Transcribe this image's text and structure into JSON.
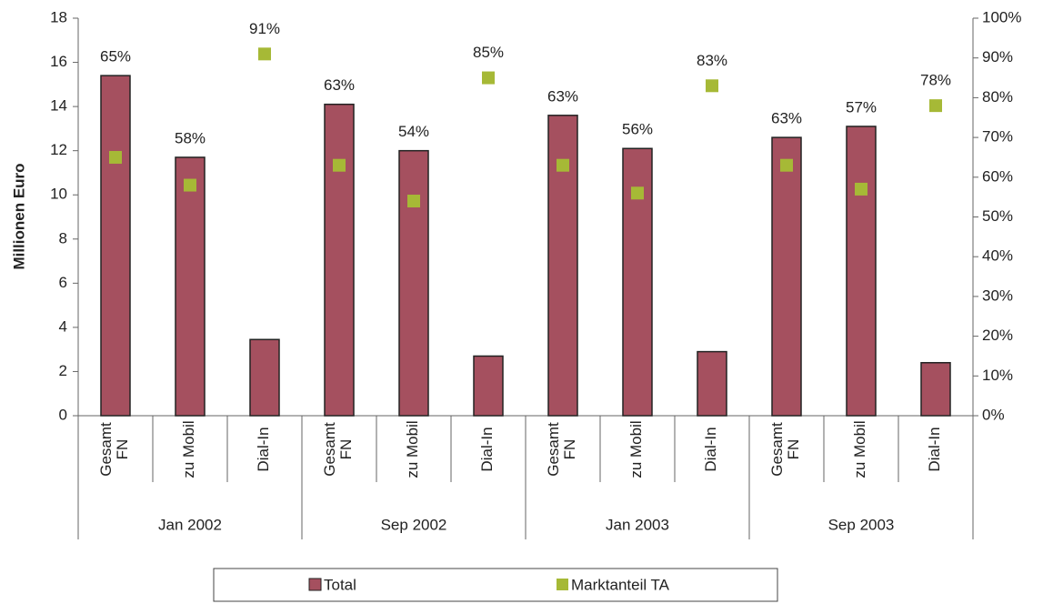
{
  "chart_data": {
    "type": "bar",
    "ylabel": "Millionen Euro",
    "categories": [
      "Gesamt\nFN",
      "zu Mobil",
      "Dial-In",
      "Gesamt\nFN",
      "zu Mobil",
      "Dial-In",
      "Gesamt\nFN",
      "zu Mobil",
      "Dial-In",
      "Gesamt\nFN",
      "zu Mobil",
      "Dial-In"
    ],
    "group_labels": [
      "Jan 2002",
      "Sep 2002",
      "Jan 2003",
      "Sep 2003"
    ],
    "series": [
      {
        "name": "Total",
        "color": "#a5505f",
        "values": [
          15.4,
          11.7,
          3.45,
          14.1,
          12.0,
          2.7,
          13.6,
          12.1,
          2.9,
          12.6,
          13.1,
          2.4
        ]
      },
      {
        "name": "Marktanteil TA",
        "color": "#a6b936",
        "axis": "y2",
        "type": "scatter",
        "values": [
          65,
          58,
          91,
          63,
          54,
          85,
          63,
          56,
          83,
          63,
          57,
          78
        ],
        "value_labels": [
          "65%",
          "58%",
          "91%",
          "63%",
          "54%",
          "85%",
          "63%",
          "56%",
          "83%",
          "63%",
          "57%",
          "78%"
        ]
      }
    ],
    "ylim": [
      0,
      18
    ],
    "yticks": [
      0,
      2,
      4,
      6,
      8,
      10,
      12,
      14,
      16,
      18
    ],
    "y2lim": [
      0,
      100
    ],
    "y2ticks": [
      {
        "value": 0,
        "label": "0%"
      },
      {
        "value": 10,
        "label": "10%"
      },
      {
        "value": 20,
        "label": "20%"
      },
      {
        "value": 30,
        "label": "30%"
      },
      {
        "value": 40,
        "label": "40%"
      },
      {
        "value": 50,
        "label": "50%"
      },
      {
        "value": 60,
        "label": "60%"
      },
      {
        "value": 70,
        "label": "70%"
      },
      {
        "value": 80,
        "label": "80%"
      },
      {
        "value": 90,
        "label": "90%"
      },
      {
        "value": 100,
        "label": "100%"
      }
    ],
    "legend": "bottom"
  }
}
